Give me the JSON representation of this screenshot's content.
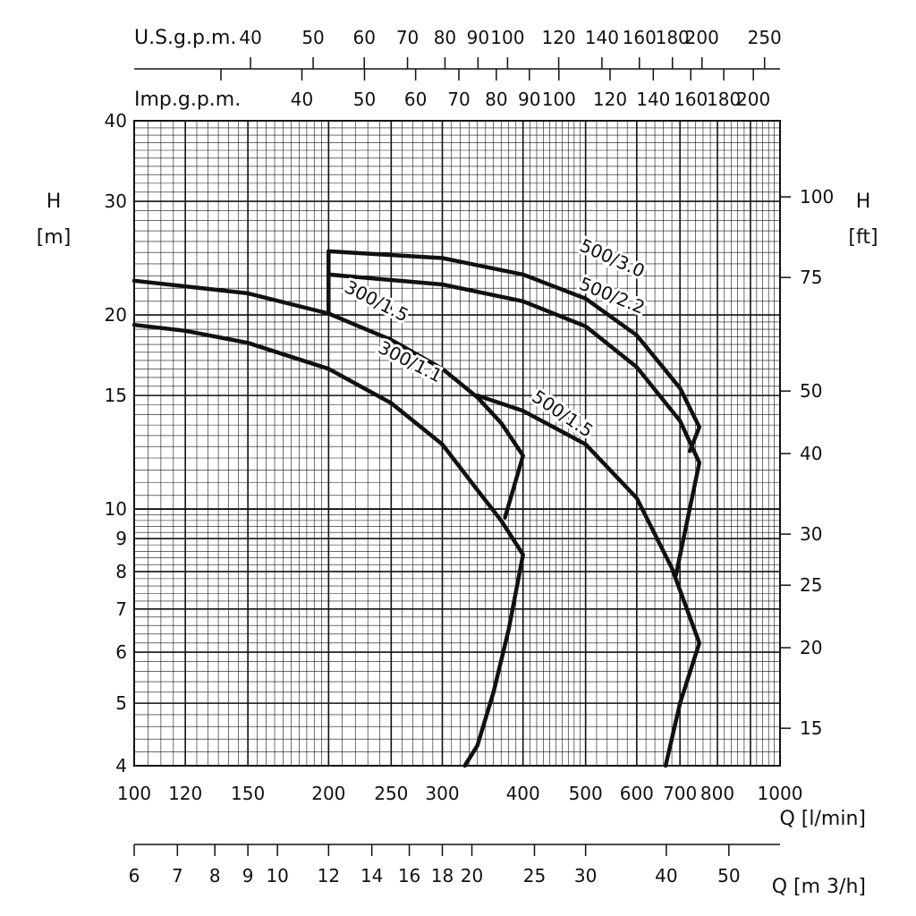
{
  "chart_data": {
    "type": "line",
    "x_scale": "log",
    "y_scale": "log",
    "xlim": [
      100,
      1000
    ],
    "ylim": [
      4,
      40
    ],
    "grid": true,
    "left_axis": {
      "label_line1": "H",
      "label_line2": "[m]",
      "ticks": [
        4,
        5,
        6,
        7,
        8,
        9,
        10,
        15,
        20,
        30,
        40
      ]
    },
    "right_axis": {
      "label_line1": "H",
      "label_line2": "[ft]",
      "ticks": [
        15,
        20,
        25,
        30,
        40,
        50,
        75,
        100
      ]
    },
    "bottom_axis": {
      "label": "Q [l/min]",
      "ticks": [
        100,
        120,
        150,
        200,
        250,
        300,
        400,
        500,
        600,
        700,
        800,
        1000
      ]
    },
    "m3h_axis": {
      "label": "Q [m 3/h]",
      "ticks": [
        6,
        7,
        8,
        9,
        10,
        12,
        14,
        16,
        18,
        20,
        25,
        30,
        40,
        50
      ]
    },
    "usgpm_axis": {
      "label": "U.S.g.p.m.",
      "ticks": [
        40,
        50,
        60,
        70,
        80,
        90,
        100,
        120,
        140,
        160,
        180,
        200,
        250
      ]
    },
    "impgpm_axis": {
      "label": "Imp.g.p.m.",
      "ticks": [
        40,
        50,
        60,
        70,
        80,
        90,
        100,
        120,
        140,
        160,
        180,
        200
      ]
    },
    "series": [
      {
        "name": "300/1.1",
        "label_at": [
          265,
          16.6
        ],
        "label_angle": 27,
        "points": [
          [
            100,
            19.3
          ],
          [
            120,
            18.9
          ],
          [
            150,
            18.1
          ],
          [
            200,
            16.5
          ],
          [
            250,
            14.6
          ],
          [
            300,
            12.6
          ],
          [
            340,
            10.7
          ],
          [
            370,
            9.6
          ],
          [
            400,
            8.5
          ],
          [
            380,
            6.5
          ],
          [
            360,
            5.2
          ],
          [
            340,
            4.3
          ],
          [
            325,
            4.0
          ]
        ]
      },
      {
        "name": "300/1.5",
        "label_at": [
          235,
          20.6
        ],
        "label_angle": 27,
        "points": [
          [
            100,
            22.6
          ],
          [
            150,
            21.6
          ],
          [
            200,
            20.1
          ],
          [
            250,
            18.3
          ],
          [
            300,
            16.5
          ],
          [
            340,
            14.9
          ],
          [
            370,
            13.6
          ],
          [
            400,
            12.1
          ],
          [
            375,
            9.7
          ]
        ]
      },
      {
        "name": "500/1.5",
        "label_at": [
          455,
          13.8
        ],
        "label_angle": 34,
        "points": [
          [
            340,
            15.0
          ],
          [
            400,
            14.2
          ],
          [
            500,
            12.6
          ],
          [
            600,
            10.4
          ],
          [
            680,
            8.1
          ],
          [
            750,
            6.2
          ],
          [
            700,
            5.0
          ],
          [
            665,
            4.0
          ]
        ]
      },
      {
        "name": "500/2.2",
        "label_at": [
          545,
          21.0
        ],
        "label_angle": 22,
        "points": [
          [
            200,
            20.1
          ],
          [
            200,
            23.1
          ],
          [
            300,
            22.3
          ],
          [
            400,
            21.0
          ],
          [
            500,
            19.2
          ],
          [
            600,
            16.6
          ],
          [
            700,
            13.7
          ],
          [
            750,
            11.8
          ],
          [
            690,
            7.9
          ]
        ]
      },
      {
        "name": "500/3.0",
        "label_at": [
          545,
          24.0
        ],
        "label_angle": 24,
        "points": [
          [
            200,
            23.1
          ],
          [
            200,
            25.1
          ],
          [
            300,
            24.5
          ],
          [
            400,
            23.1
          ],
          [
            500,
            21.2
          ],
          [
            600,
            18.6
          ],
          [
            700,
            15.4
          ],
          [
            750,
            13.4
          ],
          [
            725,
            12.3
          ]
        ]
      }
    ]
  }
}
